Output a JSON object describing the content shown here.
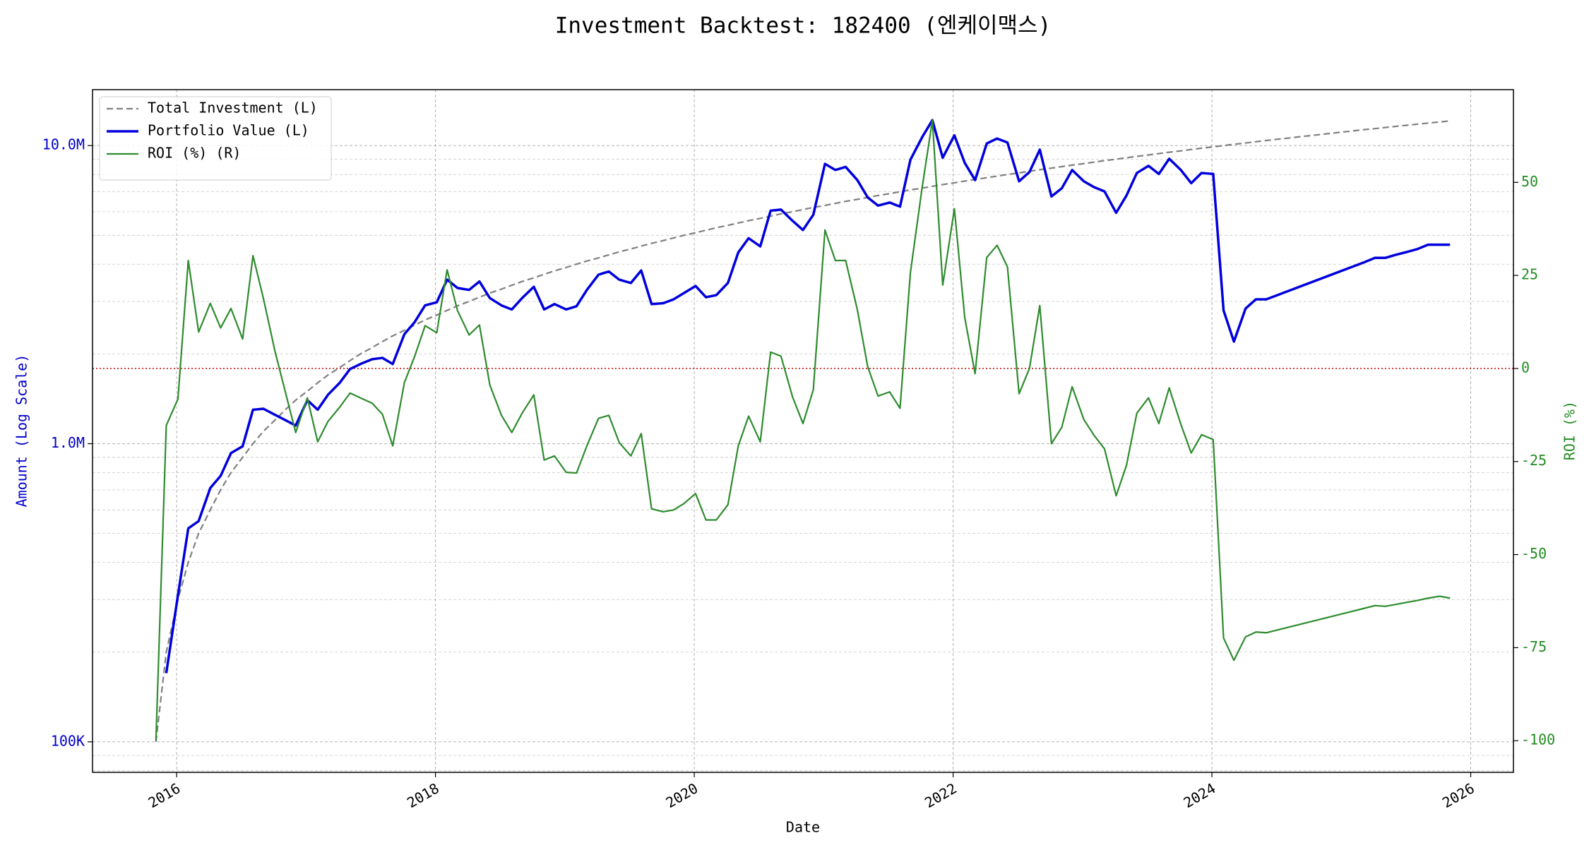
{
  "chart_data": {
    "type": "line",
    "title": "Investment Backtest: 182400 (엔케이맥스)",
    "x_label": "Date",
    "y_label": "Amount (Log Scale)",
    "y2_label": "ROI (%)",
    "x": [
      2015.84,
      2015.92,
      2016.01,
      2016.09,
      2016.17,
      2016.26,
      2016.34,
      2016.42,
      2016.51,
      2016.59,
      2016.67,
      2016.76,
      2016.84,
      2016.92,
      2017.01,
      2017.09,
      2017.17,
      2017.26,
      2017.34,
      2017.42,
      2017.51,
      2017.59,
      2017.67,
      2017.76,
      2017.84,
      2017.92,
      2018.01,
      2018.09,
      2018.17,
      2018.26,
      2018.34,
      2018.42,
      2018.51,
      2018.59,
      2018.67,
      2018.76,
      2018.84,
      2018.92,
      2019.01,
      2019.09,
      2019.17,
      2019.26,
      2019.34,
      2019.42,
      2019.51,
      2019.59,
      2019.67,
      2019.76,
      2019.84,
      2019.92,
      2020.01,
      2020.09,
      2020.17,
      2020.26,
      2020.34,
      2020.42,
      2020.51,
      2020.59,
      2020.67,
      2020.76,
      2020.84,
      2020.92,
      2021.01,
      2021.09,
      2021.17,
      2021.26,
      2021.34,
      2021.42,
      2021.51,
      2021.59,
      2021.67,
      2021.76,
      2021.84,
      2021.92,
      2022.01,
      2022.09,
      2022.17,
      2022.26,
      2022.34,
      2022.42,
      2022.51,
      2022.59,
      2022.67,
      2022.76,
      2022.84,
      2022.92,
      2023.01,
      2023.09,
      2023.17,
      2023.26,
      2023.34,
      2023.42,
      2023.51,
      2023.59,
      2023.67,
      2023.76,
      2023.84,
      2023.92,
      2024.01,
      2024.09,
      2024.17,
      2024.26,
      2024.34,
      2024.42,
      2025.17,
      2025.26,
      2025.34,
      2025.42,
      2025.51,
      2025.59,
      2025.67,
      2025.76,
      2025.84
    ],
    "xlim": [
      2015.35,
      2026.33
    ],
    "xticks": [
      2016,
      2018,
      2020,
      2022,
      2024,
      2026
    ],
    "yscale": "log",
    "ylim": [
      79000,
      15400000
    ],
    "yticks": [
      {
        "value": 100000,
        "label": "100K"
      },
      {
        "value": 1000000,
        "label": "1.0M"
      },
      {
        "value": 10000000,
        "label": "10.0M"
      }
    ],
    "y2lim": [
      -108.5,
      74.9
    ],
    "y2ticks": [
      -100,
      -75,
      -50,
      -25,
      0,
      25,
      50
    ],
    "grid": true,
    "legend": "upper left",
    "y_tick_color": "#0000cc",
    "y2_tick_color": "#228b22",
    "reference_line": {
      "value": 0,
      "axis": "y2",
      "color": "#cc0000",
      "style": "dotted"
    },
    "series": [
      {
        "name": "Total Investment (L)",
        "color": "#808080",
        "style": "dashed",
        "values": [
          100000,
          200000,
          300000,
          400000,
          500000,
          600000,
          700000,
          800000,
          900000,
          1000000,
          1100000,
          1200000,
          1300000,
          1400000,
          1500000,
          1600000,
          1700000,
          1800000,
          1900000,
          2000000,
          2100000,
          2200000,
          2300000,
          2400000,
          2500000,
          2600000,
          2700000,
          2800000,
          2900000,
          3000000,
          3100000,
          3200000,
          3300000,
          3400000,
          3500000,
          3600000,
          3700000,
          3800000,
          3900000,
          4000000,
          4100000,
          4200000,
          4300000,
          4400000,
          4500000,
          4600000,
          4700000,
          4800000,
          4900000,
          5000000,
          5100000,
          5200000,
          5300000,
          5400000,
          5500000,
          5600000,
          5700000,
          5800000,
          5900000,
          6000000,
          6100000,
          6200000,
          6300000,
          6400000,
          6500000,
          6600000,
          6700000,
          6800000,
          6900000,
          7000000,
          7100000,
          7200000,
          7300000,
          7400000,
          7500000,
          7600000,
          7700000,
          7800000,
          7900000,
          8000000,
          8100000,
          8200000,
          8300000,
          8400000,
          8500000,
          8600000,
          8700000,
          8800000,
          8900000,
          9000000,
          9100000,
          9200000,
          9300000,
          9400000,
          9500000,
          9600000,
          9700000,
          9800000,
          9900000,
          10000000,
          10100000,
          10200000,
          10300000,
          10400000,
          11300000,
          11400000,
          11500000,
          11600000,
          11700000,
          11800000,
          11900000,
          12000000,
          12100000
        ]
      },
      {
        "name": "Portfolio Value (L)",
        "color": "#0000dd",
        "style": "solid",
        "values": [
          null,
          170000,
          310000,
          520000,
          550000,
          710000,
          780000,
          930000,
          980000,
          1300000,
          1310000,
          1250000,
          1200000,
          1150000,
          1400000,
          1300000,
          1460000,
          1600000,
          1780000,
          1850000,
          1920000,
          1940000,
          1850000,
          2330000,
          2560000,
          2910000,
          2980000,
          3550000,
          3330000,
          3280000,
          3500000,
          3080000,
          2910000,
          2820000,
          3080000,
          3360000,
          2820000,
          2940000,
          2820000,
          2890000,
          3280000,
          3690000,
          3780000,
          3550000,
          3460000,
          3810000,
          2940000,
          2960000,
          3050000,
          3200000,
          3380000,
          3100000,
          3150000,
          3460000,
          4380000,
          4890000,
          4590000,
          6050000,
          6100000,
          5590000,
          5210000,
          5860000,
          8680000,
          8280000,
          8480000,
          7660000,
          6700000,
          6290000,
          6440000,
          6240000,
          8960000,
          10650000,
          12170000,
          9100000,
          10820000,
          8750000,
          7660000,
          10160000,
          10560000,
          10240000,
          7590000,
          8150000,
          9690000,
          6750000,
          7190000,
          8280000,
          7590000,
          7250000,
          7020000,
          5950000,
          6800000,
          8090000,
          8550000,
          8030000,
          9030000,
          8280000,
          7480000,
          8090000,
          8030000,
          2800000,
          2200000,
          2840000,
          3050000,
          3050000,
          4050000,
          4200000,
          4200000,
          4300000,
          4400000,
          4500000,
          4650000,
          4650000,
          4650000
        ]
      },
      {
        "name": "ROI (%) (R)",
        "color": "#2e8b2e",
        "style": "solid",
        "axis": "y2",
        "values": [
          -100,
          -15.3,
          -8.2,
          29,
          9.8,
          17.5,
          10.9,
          16.1,
          7.9,
          30.3,
          18.9,
          4.6,
          -6.3,
          -17.2,
          -7.9,
          -19.7,
          -14.2,
          -10.4,
          -6.6,
          -7.9,
          -9.3,
          -12.3,
          -20.8,
          -3.8,
          3.3,
          11.5,
          9.6,
          26.5,
          15.6,
          9.0,
          11.7,
          -4.4,
          -12.6,
          -17.2,
          -12.0,
          -7.1,
          -24.6,
          -23.5,
          -27.9,
          -28.1,
          -20.8,
          -13.4,
          -12.6,
          -19.9,
          -23.5,
          -17.5,
          -37.7,
          -38.5,
          -38.0,
          -36.3,
          -33.6,
          -40.7,
          -40.7,
          -36.6,
          -20.8,
          -12.8,
          -19.7,
          4.4,
          3.3,
          -7.7,
          -14.8,
          -5.7,
          37.2,
          29.0,
          29.0,
          15.8,
          0.5,
          -7.4,
          -6.3,
          -10.7,
          25.7,
          48.4,
          66.7,
          22.4,
          42.9,
          13.7,
          -1.4,
          29.8,
          33.1,
          27.3,
          -6.8,
          0,
          16.9,
          -20.2,
          -15.8,
          -4.9,
          -13.7,
          -18.0,
          -21.6,
          -34.2,
          -26.0,
          -12.0,
          -7.9,
          -14.8,
          -5.2,
          -15.0,
          -22.7,
          -17.8,
          -19.1,
          -72.4,
          -78.4,
          -72.1,
          -70.8,
          -71.0,
          -64.5,
          -63.7,
          -63.9,
          -63.4,
          -62.8,
          -62.3,
          -61.7,
          -61.2,
          -61.7
        ]
      }
    ]
  }
}
